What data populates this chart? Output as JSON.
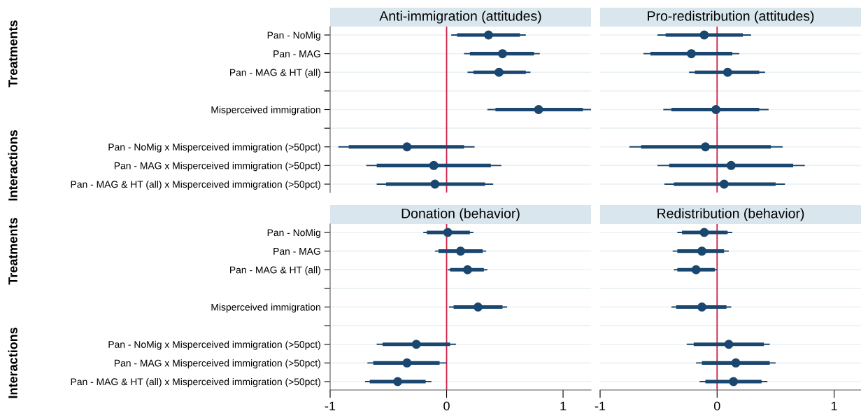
{
  "chart_data": [
    {
      "type": "scatter",
      "title": "Anti-immigration (attitudes)",
      "orientation": "horizontal",
      "categories": [
        "Pan - NoMig",
        "Pan - MAG",
        "Pan - MAG & HT (all)",
        null,
        "Misperceived immigration",
        null,
        "Pan - NoMig x Misperceived immigration (>50pct)",
        "Pan - MAG x Misperceived immigration (>50pct)",
        "Pan - MAG & HT (all) x Misperceived immigration (>50pct)"
      ],
      "xlim": [
        -1,
        1.24
      ],
      "xticks": [
        -1,
        0,
        1
      ],
      "tick_labels": "y",
      "grid": "y",
      "marker": "circle",
      "annotations": [
        "Treatments",
        "Interactions"
      ],
      "ref_lines": [
        {
          "axis": "x",
          "value": 0,
          "color": "#d11f47"
        }
      ],
      "series": [
        {
          "color": "#1a476f",
          "values": [
            0.36,
            0.48,
            0.45,
            null,
            0.79,
            null,
            -0.34,
            -0.11,
            -0.1
          ],
          "errors": [
            [
              0.04,
              0.68
            ],
            [
              0.15,
              0.8
            ],
            [
              0.18,
              0.72
            ],
            null,
            [
              0.35,
              1.24
            ],
            null,
            [
              -0.93,
              0.24
            ],
            [
              -0.69,
              0.47
            ],
            [
              -0.6,
              0.4
            ]
          ]
        },
        {
          "type": "bar",
          "color": "#1a476f",
          "base": [
            0.09,
            0.2,
            0.23,
            null,
            0.42,
            null,
            -0.84,
            -0.6,
            -0.52
          ],
          "values": [
            0.54,
            0.55,
            0.45,
            null,
            0.75,
            null,
            0.99,
            0.98,
            0.85
          ]
        }
      ]
    },
    {
      "type": "scatter",
      "title": "Pro-redistribution (attitudes)",
      "orientation": "horizontal",
      "categories": [
        null,
        null,
        null,
        null,
        null,
        null,
        null,
        null,
        null
      ],
      "xlim": [
        -1,
        1.23
      ],
      "xticks": [
        -1,
        0,
        1
      ],
      "tick_labels": false,
      "grid": "y",
      "marker": "circle",
      "ref_lines": [
        {
          "axis": "x",
          "value": 0,
          "color": "#d11f47"
        }
      ],
      "series": [
        {
          "color": "#1a476f",
          "values": [
            -0.11,
            -0.22,
            0.09,
            null,
            -0.01,
            null,
            -0.1,
            0.12,
            0.06
          ],
          "errors": [
            [
              -0.51,
              0.29
            ],
            [
              -0.63,
              0.19
            ],
            [
              -0.24,
              0.41
            ],
            null,
            [
              -0.46,
              0.44
            ],
            null,
            [
              -0.75,
              0.56
            ],
            [
              -0.51,
              0.75
            ],
            [
              -0.45,
              0.58
            ]
          ]
        },
        {
          "type": "bar",
          "color": "#1a476f",
          "base": [
            -0.44,
            -0.57,
            -0.19,
            null,
            -0.39,
            null,
            -0.65,
            -0.41,
            -0.37
          ],
          "values": [
            0.66,
            0.7,
            0.55,
            null,
            0.75,
            null,
            1.11,
            1.06,
            0.87
          ]
        }
      ]
    },
    {
      "type": "scatter",
      "title": "Donation (behavior)",
      "orientation": "horizontal",
      "categories": [
        "Pan - NoMig",
        "Pan - MAG",
        "Pan - MAG & HT (all)",
        null,
        "Misperceived immigration",
        null,
        "Pan - NoMig x Misperceived immigration (>50pct)",
        "Pan - MAG x Misperceived immigration (>50pct)",
        "Pan - MAG & HT (all) x Misperceived immigration (>50pct)"
      ],
      "xlim": [
        -1,
        1.24
      ],
      "xticks": [
        -1,
        0,
        1
      ],
      "grid": "y",
      "marker": "circle",
      "annotations": [
        "Treatments",
        "Interactions"
      ],
      "ref_lines": [
        {
          "axis": "x",
          "value": 0,
          "color": "#d11f47"
        }
      ],
      "series": [
        {
          "color": "#1a476f",
          "values": [
            0.01,
            0.12,
            0.18,
            null,
            0.27,
            null,
            -0.26,
            -0.34,
            -0.42
          ],
          "errors": [
            [
              -0.2,
              0.23
            ],
            [
              -0.1,
              0.34
            ],
            [
              0.01,
              0.35
            ],
            null,
            [
              0.02,
              0.52
            ],
            null,
            [
              -0.6,
              0.08
            ],
            [
              -0.68,
              0.0
            ],
            [
              -0.7,
              -0.13
            ]
          ]
        },
        {
          "type": "bar",
          "color": "#1a476f",
          "base": [
            -0.17,
            -0.07,
            0.03,
            null,
            0.06,
            null,
            -0.55,
            -0.63,
            -0.66
          ],
          "values": [
            0.37,
            0.38,
            0.29,
            null,
            0.42,
            null,
            0.58,
            0.57,
            0.48
          ]
        }
      ]
    },
    {
      "type": "scatter",
      "title": "Redistribution (behavior)",
      "orientation": "horizontal",
      "categories": [
        null,
        null,
        null,
        null,
        null,
        null,
        null,
        null,
        null
      ],
      "xlim": [
        -1,
        1.23
      ],
      "xticks": [
        -1,
        0,
        1
      ],
      "tick_labels": "x",
      "grid": "y",
      "marker": "circle",
      "ref_lines": [
        {
          "axis": "x",
          "value": 0,
          "color": "#d11f47"
        }
      ],
      "series": [
        {
          "color": "#1a476f",
          "values": [
            -0.11,
            -0.13,
            -0.18,
            null,
            -0.13,
            null,
            0.1,
            0.16,
            0.14
          ],
          "errors": [
            [
              -0.34,
              0.13
            ],
            [
              -0.38,
              0.1
            ],
            [
              -0.37,
              0.0
            ],
            null,
            [
              -0.39,
              0.12
            ],
            null,
            [
              -0.26,
              0.45
            ],
            [
              -0.18,
              0.5
            ],
            [
              -0.15,
              0.43
            ]
          ]
        },
        {
          "type": "bar",
          "color": "#1a476f",
          "base": [
            -0.3,
            -0.34,
            -0.34,
            null,
            -0.35,
            null,
            -0.2,
            -0.13,
            -0.1
          ],
          "values": [
            0.39,
            0.4,
            0.32,
            null,
            0.43,
            null,
            0.6,
            0.58,
            0.48
          ]
        }
      ]
    }
  ]
}
